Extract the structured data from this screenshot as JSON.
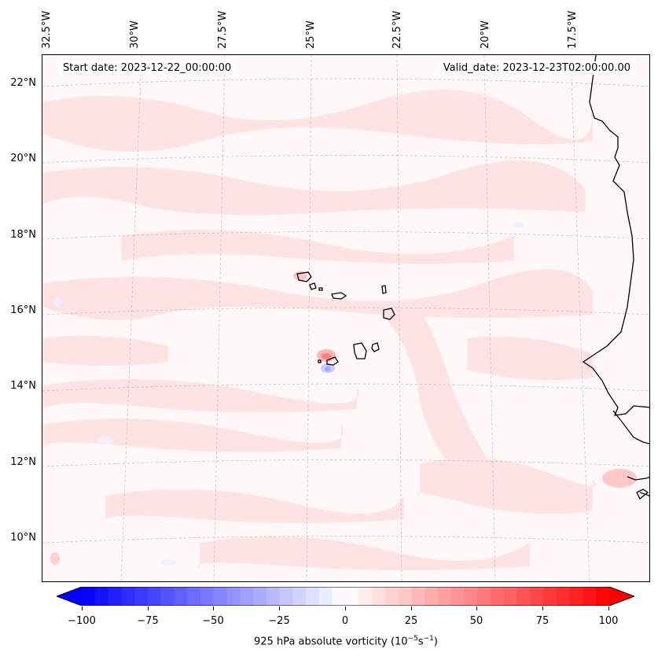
{
  "map": {
    "start_date": "Start date: 2023-12-22_00:00:00",
    "valid_date": "Valid_date: 2023-12-23T02:00:00.00",
    "lon_labels": [
      "32.5°W",
      "30°W",
      "27.5°W",
      "25°W",
      "22.5°W",
      "20°W",
      "17.5°W"
    ],
    "lat_labels": [
      "22°N",
      "20°N",
      "18°N",
      "16°N",
      "14°N",
      "12°N",
      "10°N"
    ],
    "colors": {
      "coastline": "#000000",
      "gridline": "#bbbbbb",
      "positive": "#ff0000",
      "negative": "#0000ff"
    }
  },
  "colorbar": {
    "ticks": [
      "−100",
      "−75",
      "−50",
      "−25",
      "0",
      "25",
      "50",
      "75",
      "100"
    ],
    "label_text": "925 hPa absolute vorticity (10",
    "label_exp1": "−5",
    "label_mid": "s",
    "label_exp2": "−1",
    "label_end": ")",
    "range": [
      -100,
      100
    ],
    "min_color": "#0000ff",
    "mid_color": "#ffffff",
    "max_color": "#ff0000"
  }
}
